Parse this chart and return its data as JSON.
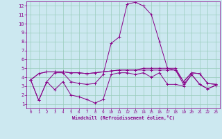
{
  "xlabel": "Windchill (Refroidissement éolien,°C)",
  "background_color": "#cce8f0",
  "grid_color": "#99ccbb",
  "line_color": "#880088",
  "xlim": [
    -0.5,
    23.5
  ],
  "ylim": [
    0.5,
    12.5
  ],
  "xticks": [
    0,
    1,
    2,
    3,
    4,
    5,
    6,
    7,
    8,
    9,
    10,
    11,
    12,
    13,
    14,
    15,
    16,
    17,
    18,
    19,
    20,
    21,
    22,
    23
  ],
  "yticks": [
    1,
    2,
    3,
    4,
    5,
    6,
    7,
    8,
    9,
    10,
    11,
    12
  ],
  "series": [
    [
      3.7,
      1.4,
      3.5,
      2.6,
      3.5,
      2.0,
      1.8,
      1.5,
      1.1,
      1.5,
      4.3,
      4.5,
      4.5,
      4.3,
      4.5,
      4.0,
      4.5,
      3.2,
      3.2,
      3.0,
      4.3,
      3.2,
      2.7,
      3.1
    ],
    [
      3.7,
      1.4,
      3.5,
      4.5,
      4.5,
      3.5,
      3.3,
      3.2,
      3.3,
      4.3,
      7.8,
      8.5,
      12.2,
      12.4,
      12.0,
      11.0,
      8.0,
      5.0,
      4.8,
      3.2,
      4.3,
      3.2,
      2.7,
      3.1
    ],
    [
      3.7,
      4.4,
      4.6,
      4.6,
      4.6,
      4.5,
      4.5,
      4.4,
      4.5,
      4.6,
      4.7,
      4.8,
      4.8,
      4.8,
      4.8,
      4.8,
      4.8,
      4.8,
      4.8,
      3.5,
      4.5,
      4.4,
      3.3,
      3.2
    ],
    [
      3.7,
      4.4,
      4.6,
      4.6,
      4.6,
      4.5,
      4.5,
      4.4,
      4.5,
      4.6,
      4.7,
      4.8,
      4.8,
      4.8,
      5.0,
      5.0,
      5.0,
      5.0,
      5.0,
      3.5,
      4.5,
      4.4,
      3.3,
      3.2
    ]
  ]
}
